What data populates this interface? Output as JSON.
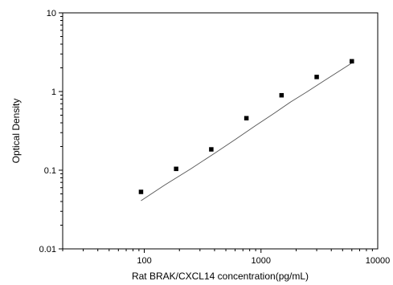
{
  "chart_data": {
    "type": "scatter",
    "title": "",
    "xlabel": "Rat BRAK/CXCL14 concentration(pg/mL)",
    "ylabel": "Optical Density",
    "x_scale": "log",
    "y_scale": "log",
    "xlim": [
      20,
      10000
    ],
    "ylim": [
      0.01,
      10
    ],
    "x_ticks": [
      100,
      1000,
      10000
    ],
    "x_tick_labels": [
      "100",
      "1000",
      "10000"
    ],
    "y_ticks": [
      0.01,
      0.1,
      1,
      10
    ],
    "y_tick_labels": [
      "0.01",
      "0.1",
      "1",
      "10"
    ],
    "grid": false,
    "legend": "none",
    "series": [
      {
        "points": [
          {
            "x": 93.75,
            "y": 0.053
          },
          {
            "x": 187.5,
            "y": 0.104
          },
          {
            "x": 375,
            "y": 0.184
          },
          {
            "x": 750,
            "y": 0.458
          },
          {
            "x": 1500,
            "y": 0.896
          },
          {
            "x": 3000,
            "y": 1.531
          },
          {
            "x": 6000,
            "y": 2.424
          }
        ]
      }
    ],
    "fit_curve": {
      "x": [
        93.75,
        150,
        250,
        400,
        600,
        900,
        1300,
        1800,
        2500,
        3500,
        4500,
        6000
      ],
      "y": [
        0.041,
        0.065,
        0.104,
        0.164,
        0.245,
        0.37,
        0.53,
        0.74,
        1.0,
        1.38,
        1.75,
        2.3
      ]
    },
    "colors": {
      "marker": "#000000",
      "curve": "#555555",
      "axis": "#000000"
    }
  }
}
